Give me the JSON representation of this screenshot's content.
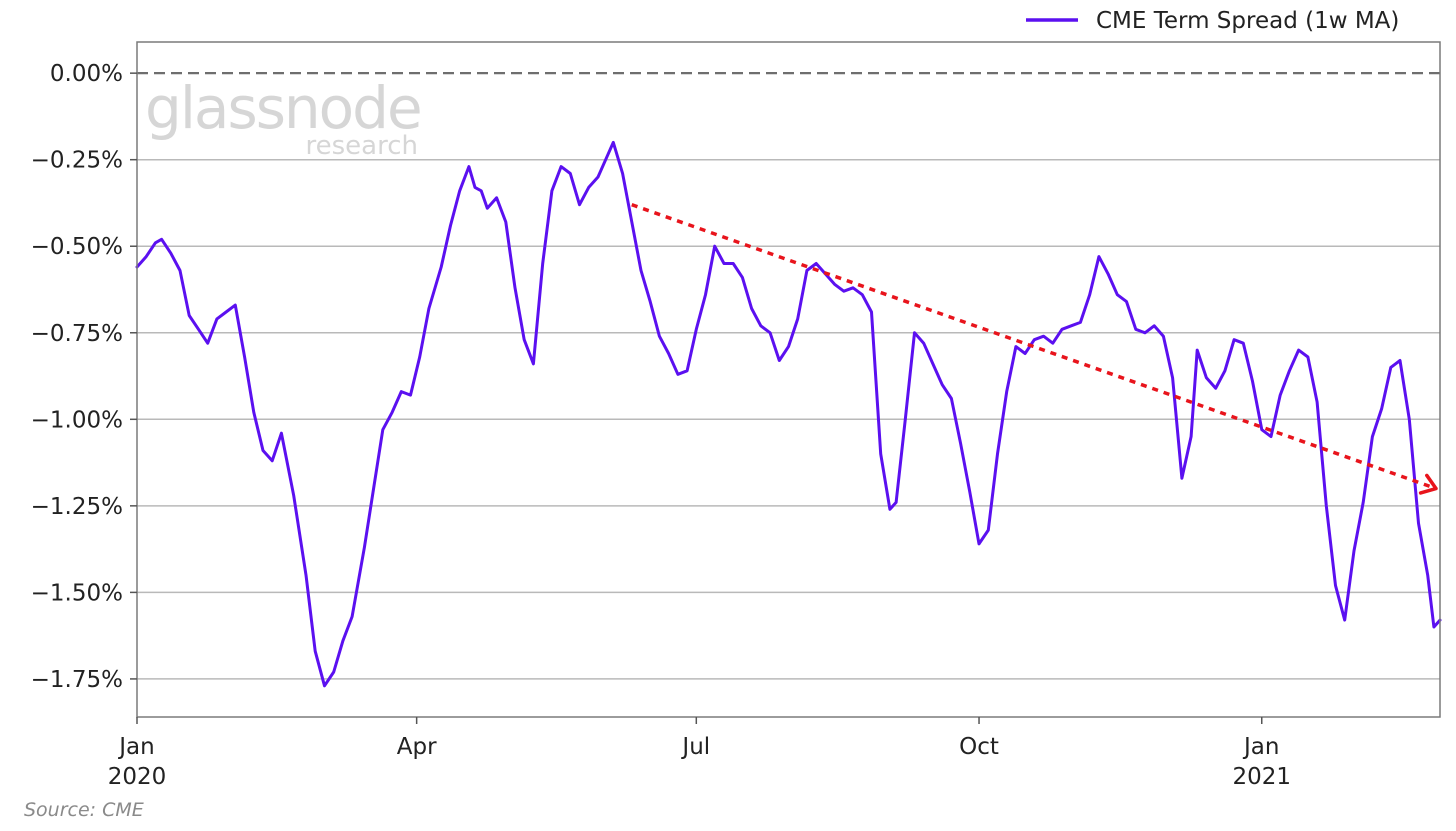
{
  "watermark": {
    "main": "glassnode",
    "sub": "research"
  },
  "source": "Source: CME",
  "colors": {
    "series": "#5b10f0",
    "trend": "#e8141c",
    "grid": "#b9b9b9",
    "zero_line": "#6e6e6e"
  },
  "chart_data": {
    "type": "line",
    "xlim": [
      "2020-01-01",
      "2021-02-28"
    ],
    "ylim": [
      -1.86,
      0.09
    ],
    "y_tick_values": [
      0.0,
      -0.25,
      -0.5,
      -0.75,
      -1.0,
      -1.25,
      -1.5,
      -1.75
    ],
    "y_tick_labels": [
      "0.00%",
      "−0.25%",
      "−0.50%",
      "−0.75%",
      "−1.00%",
      "−1.25%",
      "−1.50%",
      "−1.75%"
    ],
    "x_ticks": [
      {
        "date": "2020-01-01",
        "label": "Jan",
        "sublabel": "2020"
      },
      {
        "date": "2020-04-01",
        "label": "Apr",
        "sublabel": ""
      },
      {
        "date": "2020-07-01",
        "label": "Jul",
        "sublabel": ""
      },
      {
        "date": "2020-10-01",
        "label": "Oct",
        "sublabel": ""
      },
      {
        "date": "2021-01-01",
        "label": "Jan",
        "sublabel": "2021"
      }
    ],
    "grid": "horizontal",
    "legend_position": "top-right",
    "series": [
      {
        "name": "CME Term Spread (1w MA)",
        "points": [
          [
            "2020-01-01",
            -0.56
          ],
          [
            "2020-01-04",
            -0.53
          ],
          [
            "2020-01-07",
            -0.49
          ],
          [
            "2020-01-09",
            -0.48
          ],
          [
            "2020-01-12",
            -0.52
          ],
          [
            "2020-01-15",
            -0.57
          ],
          [
            "2020-01-18",
            -0.7
          ],
          [
            "2020-01-21",
            -0.74
          ],
          [
            "2020-01-24",
            -0.78
          ],
          [
            "2020-01-27",
            -0.71
          ],
          [
            "2020-01-30",
            -0.69
          ],
          [
            "2020-02-02",
            -0.67
          ],
          [
            "2020-02-05",
            -0.82
          ],
          [
            "2020-02-08",
            -0.98
          ],
          [
            "2020-02-11",
            -1.09
          ],
          [
            "2020-02-14",
            -1.12
          ],
          [
            "2020-02-17",
            -1.04
          ],
          [
            "2020-02-21",
            -1.22
          ],
          [
            "2020-02-25",
            -1.45
          ],
          [
            "2020-02-28",
            -1.67
          ],
          [
            "2020-03-02",
            -1.77
          ],
          [
            "2020-03-05",
            -1.73
          ],
          [
            "2020-03-08",
            -1.64
          ],
          [
            "2020-03-11",
            -1.57
          ],
          [
            "2020-03-15",
            -1.37
          ],
          [
            "2020-03-18",
            -1.2
          ],
          [
            "2020-03-21",
            -1.03
          ],
          [
            "2020-03-24",
            -0.98
          ],
          [
            "2020-03-27",
            -0.92
          ],
          [
            "2020-03-30",
            -0.93
          ],
          [
            "2020-04-02",
            -0.82
          ],
          [
            "2020-04-05",
            -0.68
          ],
          [
            "2020-04-09",
            -0.56
          ],
          [
            "2020-04-12",
            -0.44
          ],
          [
            "2020-04-15",
            -0.34
          ],
          [
            "2020-04-18",
            -0.27
          ],
          [
            "2020-04-20",
            -0.33
          ],
          [
            "2020-04-22",
            -0.34
          ],
          [
            "2020-04-24",
            -0.39
          ],
          [
            "2020-04-27",
            -0.36
          ],
          [
            "2020-04-30",
            -0.43
          ],
          [
            "2020-05-03",
            -0.62
          ],
          [
            "2020-05-06",
            -0.77
          ],
          [
            "2020-05-09",
            -0.84
          ],
          [
            "2020-05-12",
            -0.55
          ],
          [
            "2020-05-15",
            -0.34
          ],
          [
            "2020-05-18",
            -0.27
          ],
          [
            "2020-05-21",
            -0.29
          ],
          [
            "2020-05-24",
            -0.38
          ],
          [
            "2020-05-27",
            -0.33
          ],
          [
            "2020-05-30",
            -0.3
          ],
          [
            "2020-06-02",
            -0.24
          ],
          [
            "2020-06-04",
            -0.2
          ],
          [
            "2020-06-07",
            -0.29
          ],
          [
            "2020-06-10",
            -0.43
          ],
          [
            "2020-06-13",
            -0.57
          ],
          [
            "2020-06-16",
            -0.66
          ],
          [
            "2020-06-19",
            -0.76
          ],
          [
            "2020-06-22",
            -0.81
          ],
          [
            "2020-06-25",
            -0.87
          ],
          [
            "2020-06-28",
            -0.86
          ],
          [
            "2020-07-01",
            -0.74
          ],
          [
            "2020-07-04",
            -0.64
          ],
          [
            "2020-07-07",
            -0.5
          ],
          [
            "2020-07-10",
            -0.55
          ],
          [
            "2020-07-13",
            -0.55
          ],
          [
            "2020-07-16",
            -0.59
          ],
          [
            "2020-07-19",
            -0.68
          ],
          [
            "2020-07-22",
            -0.73
          ],
          [
            "2020-07-25",
            -0.75
          ],
          [
            "2020-07-28",
            -0.83
          ],
          [
            "2020-07-31",
            -0.79
          ],
          [
            "2020-08-03",
            -0.71
          ],
          [
            "2020-08-06",
            -0.57
          ],
          [
            "2020-08-09",
            -0.55
          ],
          [
            "2020-08-12",
            -0.58
          ],
          [
            "2020-08-15",
            -0.61
          ],
          [
            "2020-08-18",
            -0.63
          ],
          [
            "2020-08-21",
            -0.62
          ],
          [
            "2020-08-24",
            -0.64
          ],
          [
            "2020-08-27",
            -0.69
          ],
          [
            "2020-08-30",
            -1.1
          ],
          [
            "2020-09-02",
            -1.26
          ],
          [
            "2020-09-04",
            -1.24
          ],
          [
            "2020-09-07",
            -1.0
          ],
          [
            "2020-09-10",
            -0.75
          ],
          [
            "2020-09-13",
            -0.78
          ],
          [
            "2020-09-16",
            -0.84
          ],
          [
            "2020-09-19",
            -0.9
          ],
          [
            "2020-09-22",
            -0.94
          ],
          [
            "2020-09-25",
            -1.07
          ],
          [
            "2020-09-28",
            -1.21
          ],
          [
            "2020-10-01",
            -1.36
          ],
          [
            "2020-10-04",
            -1.32
          ],
          [
            "2020-10-07",
            -1.1
          ],
          [
            "2020-10-10",
            -0.92
          ],
          [
            "2020-10-13",
            -0.79
          ],
          [
            "2020-10-16",
            -0.81
          ],
          [
            "2020-10-19",
            -0.77
          ],
          [
            "2020-10-22",
            -0.76
          ],
          [
            "2020-10-25",
            -0.78
          ],
          [
            "2020-10-28",
            -0.74
          ],
          [
            "2020-10-31",
            -0.73
          ],
          [
            "2020-11-03",
            -0.72
          ],
          [
            "2020-11-06",
            -0.64
          ],
          [
            "2020-11-09",
            -0.53
          ],
          [
            "2020-11-12",
            -0.58
          ],
          [
            "2020-11-15",
            -0.64
          ],
          [
            "2020-11-18",
            -0.66
          ],
          [
            "2020-11-21",
            -0.74
          ],
          [
            "2020-11-24",
            -0.75
          ],
          [
            "2020-11-27",
            -0.73
          ],
          [
            "2020-11-30",
            -0.76
          ],
          [
            "2020-12-03",
            -0.88
          ],
          [
            "2020-12-06",
            -1.17
          ],
          [
            "2020-12-09",
            -1.05
          ],
          [
            "2020-12-11",
            -0.8
          ],
          [
            "2020-12-14",
            -0.88
          ],
          [
            "2020-12-17",
            -0.91
          ],
          [
            "2020-12-20",
            -0.86
          ],
          [
            "2020-12-23",
            -0.77
          ],
          [
            "2020-12-26",
            -0.78
          ],
          [
            "2020-12-29",
            -0.89
          ],
          [
            "2021-01-01",
            -1.03
          ],
          [
            "2021-01-04",
            -1.05
          ],
          [
            "2021-01-07",
            -0.93
          ],
          [
            "2021-01-10",
            -0.86
          ],
          [
            "2021-01-13",
            -0.8
          ],
          [
            "2021-01-16",
            -0.82
          ],
          [
            "2021-01-19",
            -0.95
          ],
          [
            "2021-01-22",
            -1.25
          ],
          [
            "2021-01-25",
            -1.48
          ],
          [
            "2021-01-28",
            -1.58
          ],
          [
            "2021-01-31",
            -1.38
          ],
          [
            "2021-02-03",
            -1.24
          ],
          [
            "2021-02-06",
            -1.05
          ],
          [
            "2021-02-09",
            -0.97
          ],
          [
            "2021-02-12",
            -0.85
          ],
          [
            "2021-02-15",
            -0.83
          ],
          [
            "2021-02-18",
            -1.0
          ],
          [
            "2021-02-21",
            -1.3
          ],
          [
            "2021-02-24",
            -1.45
          ],
          [
            "2021-02-26",
            -1.6
          ],
          [
            "2021-02-28",
            -1.58
          ]
        ]
      }
    ],
    "annotations": [
      {
        "type": "trend-arrow",
        "from": [
          "2020-06-10",
          -0.38
        ],
        "to": [
          "2021-02-28",
          -1.2
        ]
      }
    ]
  }
}
